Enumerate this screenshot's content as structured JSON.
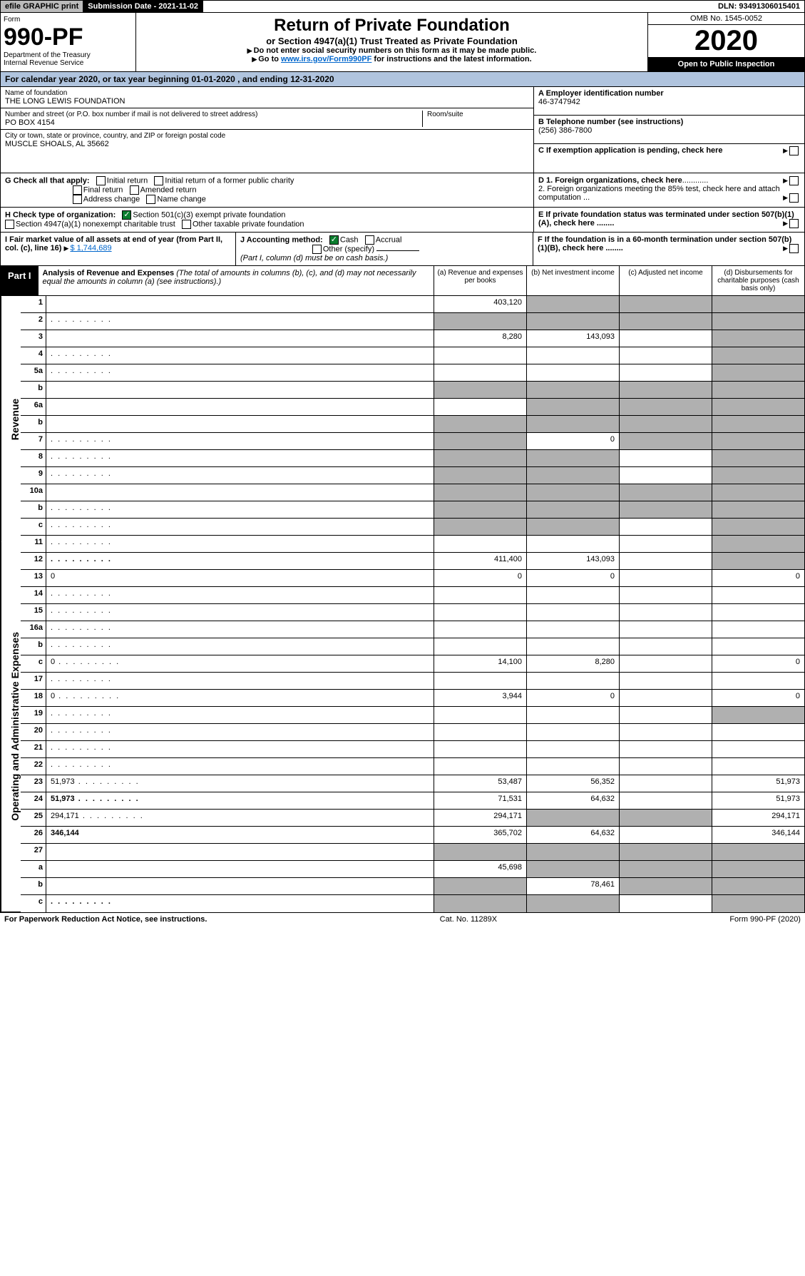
{
  "topbar": {
    "efile": "efile GRAPHIC print",
    "subdate_label": "Submission Date - 2021-11-02",
    "dln": "DLN: 93491306015401"
  },
  "header": {
    "form_label": "Form",
    "form_no": "990-PF",
    "dept": "Department of the Treasury",
    "irs": "Internal Revenue Service",
    "title": "Return of Private Foundation",
    "subtitle": "or Section 4947(a)(1) Trust Treated as Private Foundation",
    "instr1": "Do not enter social security numbers on this form as it may be made public.",
    "instr2_pre": "Go to ",
    "instr2_link": "www.irs.gov/Form990PF",
    "instr2_post": " for instructions and the latest information.",
    "omb": "OMB No. 1545-0052",
    "year": "2020",
    "inspection": "Open to Public Inspection"
  },
  "calendar": {
    "text_pre": "For calendar year 2020, or tax year beginning ",
    "begin": "01-01-2020",
    "text_mid": " , and ending ",
    "end": "12-31-2020"
  },
  "entity": {
    "name_label": "Name of foundation",
    "name": "THE LONG LEWIS FOUNDATION",
    "street_label": "Number and street (or P.O. box number if mail is not delivered to street address)",
    "street": "PO BOX 4154",
    "room_label": "Room/suite",
    "city_label": "City or town, state or province, country, and ZIP or foreign postal code",
    "city": "MUSCLE SHOALS, AL  35662",
    "ein_label": "A Employer identification number",
    "ein": "46-3747942",
    "phone_label": "B Telephone number (see instructions)",
    "phone": "(256) 386-7800",
    "c_label": "C If exemption application is pending, check here"
  },
  "checks": {
    "g_label": "G Check all that apply:",
    "initial": "Initial return",
    "initial_former": "Initial return of a former public charity",
    "final": "Final return",
    "amended": "Amended return",
    "addr": "Address change",
    "name_chg": "Name change",
    "h_label": "H Check type of organization:",
    "h501c3": "Section 501(c)(3) exempt private foundation",
    "h4947": "Section 4947(a)(1) nonexempt charitable trust",
    "hother": "Other taxable private foundation",
    "d1": "D 1. Foreign organizations, check here",
    "d2": "2. Foreign organizations meeting the 85% test, check here and attach computation ...",
    "e": "E If private foundation status was terminated under section 507(b)(1)(A), check here ........",
    "f": "F If the foundation is in a 60-month termination under section 507(b)(1)(B), check here ........"
  },
  "fmv": {
    "i_label": "I Fair market value of all assets at end of year (from Part II, col. (c), line 16)",
    "i_val": "$  1,744,689",
    "j_label": "J Accounting method:",
    "cash": "Cash",
    "accrual": "Accrual",
    "other": "Other (specify)",
    "note": "(Part I, column (d) must be on cash basis.)"
  },
  "part1": {
    "tag": "Part I",
    "title": "Analysis of Revenue and Expenses",
    "note": "(The total of amounts in columns (b), (c), and (d) may not necessarily equal the amounts in column (a) (see instructions).)",
    "col_a": "(a)   Revenue and expenses per books",
    "col_b": "(b)  Net investment income",
    "col_c": "(c)  Adjusted net income",
    "col_d": "(d)  Disbursements for charitable purposes (cash basis only)"
  },
  "vtabs": {
    "revenue": "Revenue",
    "expenses": "Operating and Administrative Expenses"
  },
  "lines": {
    "1": {
      "n": "1",
      "d": "",
      "a": "403,120",
      "b": "",
      "c": "",
      "sb": true,
      "sc": true,
      "sd": true
    },
    "2": {
      "n": "2",
      "d": "",
      "a": "",
      "b": "",
      "c": "",
      "sa": true,
      "sb": true,
      "sc": true,
      "sd": true,
      "dots": true
    },
    "3": {
      "n": "3",
      "d": "",
      "a": "8,280",
      "b": "143,093",
      "c": "",
      "sd": true
    },
    "4": {
      "n": "4",
      "d": "",
      "a": "",
      "b": "",
      "c": "",
      "sd": true,
      "dots": true
    },
    "5a": {
      "n": "5a",
      "d": "",
      "a": "",
      "b": "",
      "c": "",
      "sd": true,
      "dots": true
    },
    "5b": {
      "n": "b",
      "d": "",
      "a": "",
      "b": "",
      "c": "",
      "sa": true,
      "sb": true,
      "sc": true,
      "sd": true
    },
    "6a": {
      "n": "6a",
      "d": "",
      "a": "",
      "b": "",
      "c": "",
      "sb": true,
      "sc": true,
      "sd": true
    },
    "6b": {
      "n": "b",
      "d": "",
      "a": "",
      "b": "",
      "c": "",
      "sa": true,
      "sb": true,
      "sc": true,
      "sd": true
    },
    "7": {
      "n": "7",
      "d": "",
      "a": "",
      "b": "0",
      "c": "",
      "sa": true,
      "sc": true,
      "sd": true,
      "dots": true
    },
    "8": {
      "n": "8",
      "d": "",
      "a": "",
      "b": "",
      "c": "",
      "sa": true,
      "sb": true,
      "sd": true,
      "dots": true
    },
    "9": {
      "n": "9",
      "d": "",
      "a": "",
      "b": "",
      "c": "",
      "sa": true,
      "sb": true,
      "sd": true,
      "dots": true
    },
    "10a": {
      "n": "10a",
      "d": "",
      "a": "",
      "b": "",
      "c": "",
      "sa": true,
      "sb": true,
      "sc": true,
      "sd": true
    },
    "10b": {
      "n": "b",
      "d": "",
      "a": "",
      "b": "",
      "c": "",
      "sa": true,
      "sb": true,
      "sc": true,
      "sd": true,
      "dots": true
    },
    "10c": {
      "n": "c",
      "d": "",
      "a": "",
      "b": "",
      "c": "",
      "sa": true,
      "sb": true,
      "sd": true,
      "dots": true
    },
    "11": {
      "n": "11",
      "d": "",
      "a": "",
      "b": "",
      "c": "",
      "sd": true,
      "dots": true
    },
    "12": {
      "n": "12",
      "d": "",
      "a": "411,400",
      "b": "143,093",
      "c": "",
      "sd": true,
      "bold": true,
      "dots": true
    },
    "13": {
      "n": "13",
      "d": "0",
      "a": "0",
      "b": "0",
      "c": ""
    },
    "14": {
      "n": "14",
      "d": "",
      "a": "",
      "b": "",
      "c": "",
      "dots": true
    },
    "15": {
      "n": "15",
      "d": "",
      "a": "",
      "b": "",
      "c": "",
      "dots": true
    },
    "16a": {
      "n": "16a",
      "d": "",
      "a": "",
      "b": "",
      "c": "",
      "dots": true
    },
    "16b": {
      "n": "b",
      "d": "",
      "a": "",
      "b": "",
      "c": "",
      "dots": true
    },
    "16c": {
      "n": "c",
      "d": "0",
      "a": "14,100",
      "b": "8,280",
      "c": "",
      "dots": true
    },
    "17": {
      "n": "17",
      "d": "",
      "a": "",
      "b": "",
      "c": "",
      "dots": true
    },
    "18": {
      "n": "18",
      "d": "0",
      "a": "3,944",
      "b": "0",
      "c": "",
      "dots": true
    },
    "19": {
      "n": "19",
      "d": "",
      "a": "",
      "b": "",
      "c": "",
      "sd": true,
      "dots": true
    },
    "20": {
      "n": "20",
      "d": "",
      "a": "",
      "b": "",
      "c": "",
      "dots": true
    },
    "21": {
      "n": "21",
      "d": "",
      "a": "",
      "b": "",
      "c": "",
      "dots": true
    },
    "22": {
      "n": "22",
      "d": "",
      "a": "",
      "b": "",
      "c": "",
      "dots": true
    },
    "23": {
      "n": "23",
      "d": "51,973",
      "a": "53,487",
      "b": "56,352",
      "c": "",
      "dots": true
    },
    "24": {
      "n": "24",
      "d": "51,973",
      "a": "71,531",
      "b": "64,632",
      "c": "",
      "bold": true,
      "dots": true
    },
    "25": {
      "n": "25",
      "d": "294,171",
      "a": "294,171",
      "b": "",
      "c": "",
      "sb": true,
      "sc": true,
      "dots": true
    },
    "26": {
      "n": "26",
      "d": "346,144",
      "a": "365,702",
      "b": "64,632",
      "c": "",
      "bold": true
    },
    "27": {
      "n": "27",
      "d": "",
      "a": "",
      "b": "",
      "c": "",
      "sa": true,
      "sb": true,
      "sc": true,
      "sd": true
    },
    "27a": {
      "n": "a",
      "d": "",
      "a": "45,698",
      "b": "",
      "c": "",
      "sb": true,
      "sc": true,
      "sd": true,
      "bold": true
    },
    "27b": {
      "n": "b",
      "d": "",
      "a": "",
      "b": "78,461",
      "c": "",
      "sa": true,
      "sc": true,
      "sd": true,
      "bold": true
    },
    "27c": {
      "n": "c",
      "d": "",
      "a": "",
      "b": "",
      "c": "",
      "sa": true,
      "sb": true,
      "sd": true,
      "bold": true,
      "dots": true
    }
  },
  "footer": {
    "pra": "For Paperwork Reduction Act Notice, see instructions.",
    "cat": "Cat. No. 11289X",
    "form": "Form 990-PF (2020)"
  }
}
